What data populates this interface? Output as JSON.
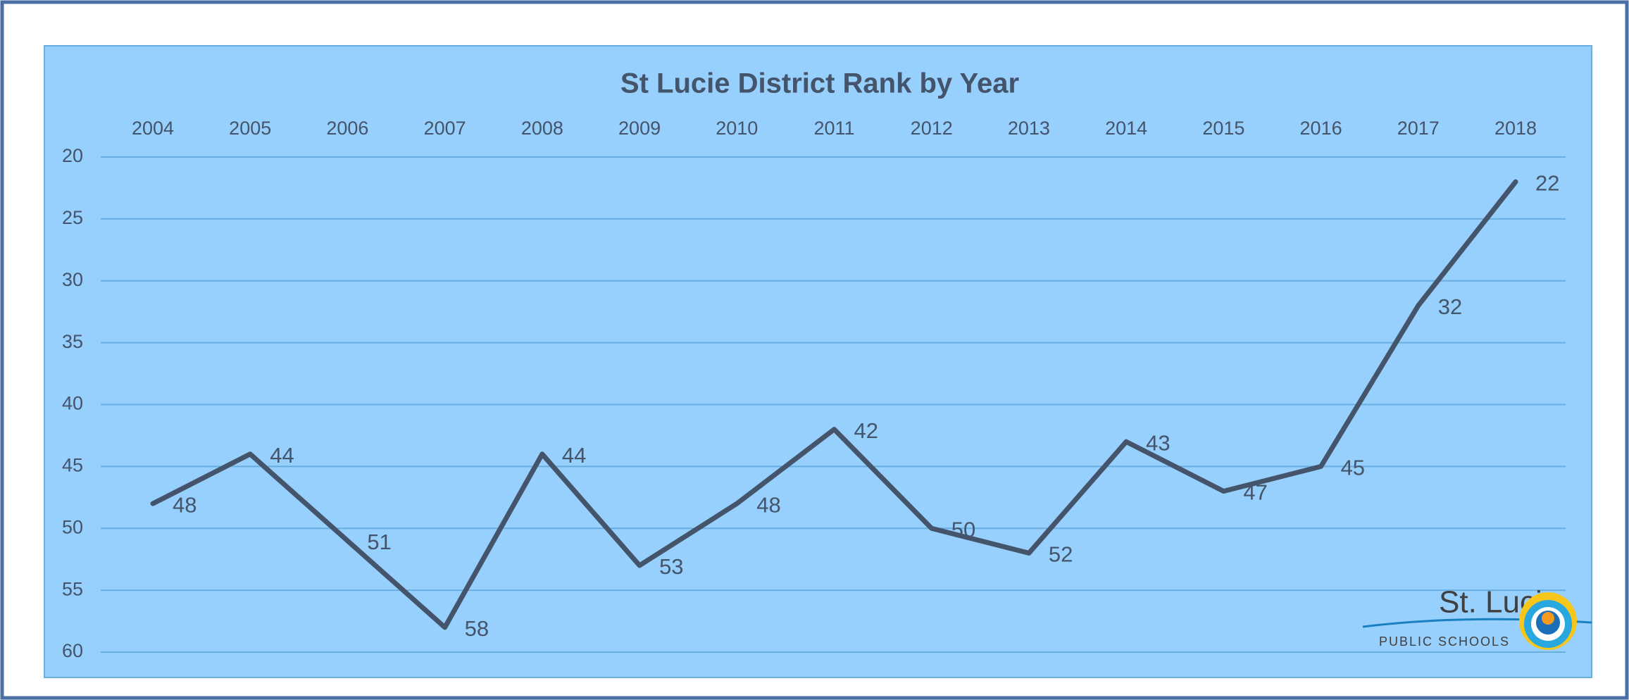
{
  "chart_data": {
    "type": "line",
    "title": "St Lucie District Rank by Year",
    "categories": [
      "2004",
      "2005",
      "2006",
      "2007",
      "2008",
      "2009",
      "2010",
      "2011",
      "2012",
      "2013",
      "2014",
      "2015",
      "2016",
      "2017",
      "2018"
    ],
    "series": [
      {
        "name": "Rank",
        "color": "#44546a",
        "values": [
          48,
          44,
          51,
          58,
          44,
          53,
          48,
          42,
          50,
          52,
          43,
          47,
          45,
          32,
          22
        ]
      }
    ],
    "ylim": [
      20,
      60
    ],
    "y_reversed": true,
    "yticks": [
      20,
      25,
      30,
      35,
      40,
      45,
      50,
      55,
      60
    ],
    "grid": true,
    "x_axis_position": "top",
    "data_labels": true
  },
  "logo": {
    "name": "St. Lucie",
    "subtitle": "PUBLIC SCHOOLS"
  }
}
